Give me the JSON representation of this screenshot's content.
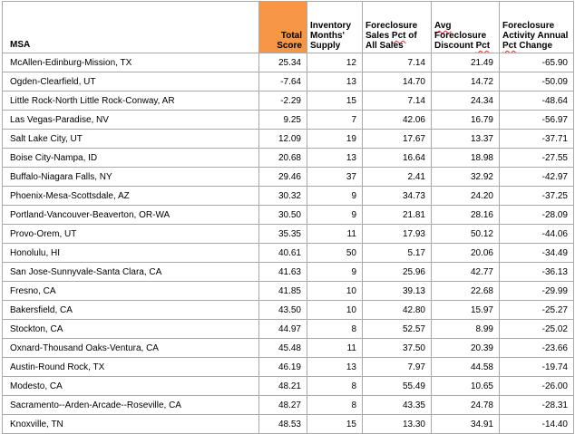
{
  "columns": {
    "msa": "MSA",
    "total_score": "Total Score",
    "inventory": "Inventory Months' Supply",
    "fc_sales_pre": "Foreclosure Sales ",
    "fc_sales_squig": "Pct",
    "fc_sales_post": " of All Sales",
    "avg_discount_squig1": "Avg",
    "avg_discount_mid": " Foreclosure Discount ",
    "avg_discount_squig2": "Pct",
    "activity_pre": "Foreclosure Activity Annual ",
    "activity_squig": "Pct",
    "activity_post": " Change"
  },
  "rows": [
    {
      "msa": "McAllen-Edinburg-Mission, TX",
      "score": "25.34",
      "inventory": "12",
      "fc_sales": "7.14",
      "discount": "21.49",
      "activity": "-65.90"
    },
    {
      "msa": "Ogden-Clearfield, UT",
      "score": "-7.64",
      "inventory": "13",
      "fc_sales": "14.70",
      "discount": "14.72",
      "activity": "-50.09"
    },
    {
      "msa": "Little Rock-North Little Rock-Conway, AR",
      "score": "-2.29",
      "inventory": "15",
      "fc_sales": "7.14",
      "discount": "24.34",
      "activity": "-48.64"
    },
    {
      "msa": "Las Vegas-Paradise, NV",
      "score": "9.25",
      "inventory": "7",
      "fc_sales": "42.06",
      "discount": "16.79",
      "activity": "-56.97"
    },
    {
      "msa": "Salt Lake City, UT",
      "score": "12.09",
      "inventory": "19",
      "fc_sales": "17.67",
      "discount": "13.37",
      "activity": "-37.71"
    },
    {
      "msa": "Boise City-Nampa, ID",
      "score": "20.68",
      "inventory": "13",
      "fc_sales": "16.64",
      "discount": "18.98",
      "activity": "-27.55"
    },
    {
      "msa": "Buffalo-Niagara Falls, NY",
      "score": "29.46",
      "inventory": "37",
      "fc_sales": "2.41",
      "discount": "32.92",
      "activity": "-42.97"
    },
    {
      "msa": "Phoenix-Mesa-Scottsdale, AZ",
      "score": "30.32",
      "inventory": "9",
      "fc_sales": "34.73",
      "discount": "24.20",
      "activity": "-37.25"
    },
    {
      "msa": "Portland-Vancouver-Beaverton, OR-WA",
      "score": "30.50",
      "inventory": "9",
      "fc_sales": "21.81",
      "discount": "28.16",
      "activity": "-28.09"
    },
    {
      "msa": "Provo-Orem, UT",
      "score": "35.35",
      "inventory": "11",
      "fc_sales": "17.93",
      "discount": "50.12",
      "activity": "-44.06"
    },
    {
      "msa": "Honolulu, HI",
      "score": "40.61",
      "inventory": "50",
      "fc_sales": "5.17",
      "discount": "20.06",
      "activity": "-34.49"
    },
    {
      "msa": "San Jose-Sunnyvale-Santa Clara, CA",
      "score": "41.63",
      "inventory": "9",
      "fc_sales": "25.96",
      "discount": "42.77",
      "activity": "-36.13"
    },
    {
      "msa": "Fresno, CA",
      "score": "41.85",
      "inventory": "10",
      "fc_sales": "39.13",
      "discount": "22.68",
      "activity": "-29.99"
    },
    {
      "msa": "Bakersfield, CA",
      "score": "43.50",
      "inventory": "10",
      "fc_sales": "42.80",
      "discount": "15.97",
      "activity": "-25.27"
    },
    {
      "msa": "Stockton, CA",
      "score": "44.97",
      "inventory": "8",
      "fc_sales": "52.57",
      "discount": "8.99",
      "activity": "-25.02"
    },
    {
      "msa": "Oxnard-Thousand Oaks-Ventura, CA",
      "score": "45.48",
      "inventory": "11",
      "fc_sales": "37.50",
      "discount": "20.39",
      "activity": "-23.66"
    },
    {
      "msa": "Austin-Round Rock, TX",
      "score": "46.19",
      "inventory": "13",
      "fc_sales": "7.97",
      "discount": "44.58",
      "activity": "-19.74"
    },
    {
      "msa": "Modesto, CA",
      "score": "48.21",
      "inventory": "8",
      "fc_sales": "55.49",
      "discount": "10.65",
      "activity": "-26.00"
    },
    {
      "msa": "Sacramento--Arden-Arcade--Roseville, CA",
      "score": "48.27",
      "inventory": "8",
      "fc_sales": "43.35",
      "discount": "24.78",
      "activity": "-28.31"
    },
    {
      "msa": "Knoxville, TN",
      "score": "48.53",
      "inventory": "15",
      "fc_sales": "13.30",
      "discount": "34.91",
      "activity": "-14.40"
    }
  ],
  "colors": {
    "score_header_bg": "#f79646",
    "grid": "#a9a9a9"
  }
}
